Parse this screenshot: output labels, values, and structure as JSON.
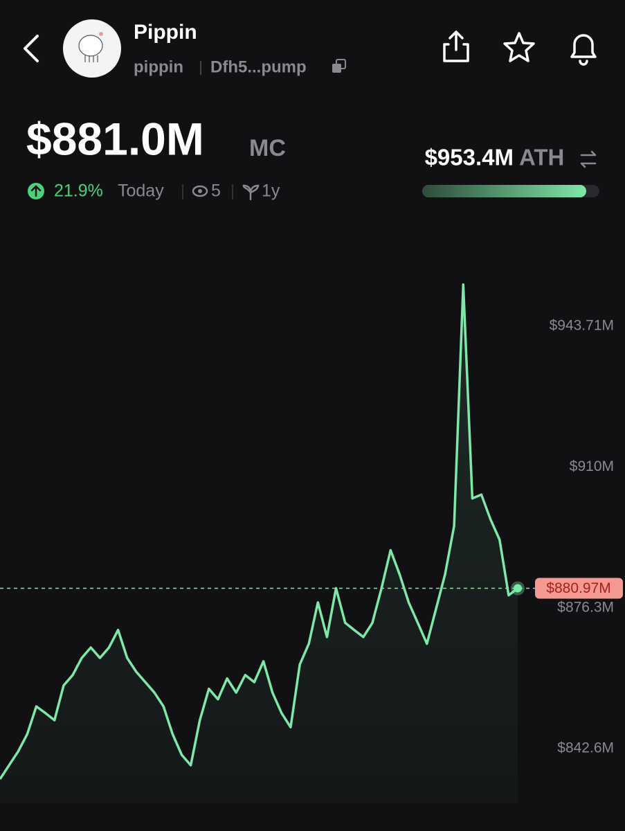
{
  "header": {
    "title": "Pippin",
    "ticker": "pippin",
    "address": "Dfh5...pump"
  },
  "stats": {
    "market_cap": "$881.0M",
    "market_cap_label": "MC",
    "change": "21.9%",
    "change_label": "Today",
    "views": "5",
    "age": "1y"
  },
  "ath": {
    "value": "$953.4M",
    "label": "ATH"
  },
  "chart_data": {
    "type": "line",
    "color": "#7ee8a8",
    "values": [
      835.3,
      838.6,
      841.9,
      846.1,
      852.7,
      851.1,
      849.4,
      857.7,
      860.2,
      864.3,
      866.8,
      864.3,
      866.8,
      871.0,
      864.3,
      861.0,
      858.5,
      856.0,
      852.7,
      846.1,
      841.1,
      838.6,
      849.4,
      856.9,
      854.4,
      859.4,
      856.0,
      860.2,
      858.5,
      863.5,
      856.0,
      851.1,
      847.7,
      862.7,
      867.7,
      877.6,
      869.3,
      881.0,
      872.7,
      871.0,
      869.3,
      872.7,
      881.0,
      890.1,
      884.3,
      877.6,
      872.7,
      867.7,
      876.0,
      884.3,
      895.9,
      953.7,
      902.5,
      903.4,
      897.5,
      892.6,
      879.3,
      880.97
    ],
    "ylim": [
      829.5,
      955.5
    ],
    "yticks": [
      {
        "value": 842.6,
        "label": "$842.6M"
      },
      {
        "value": 876.3,
        "label": "$876.3M"
      },
      {
        "value": 910,
        "label": "$910M"
      },
      {
        "value": 943.71,
        "label": "$943.71M"
      }
    ],
    "current": {
      "value": 880.97,
      "label": "$880.97M"
    }
  }
}
